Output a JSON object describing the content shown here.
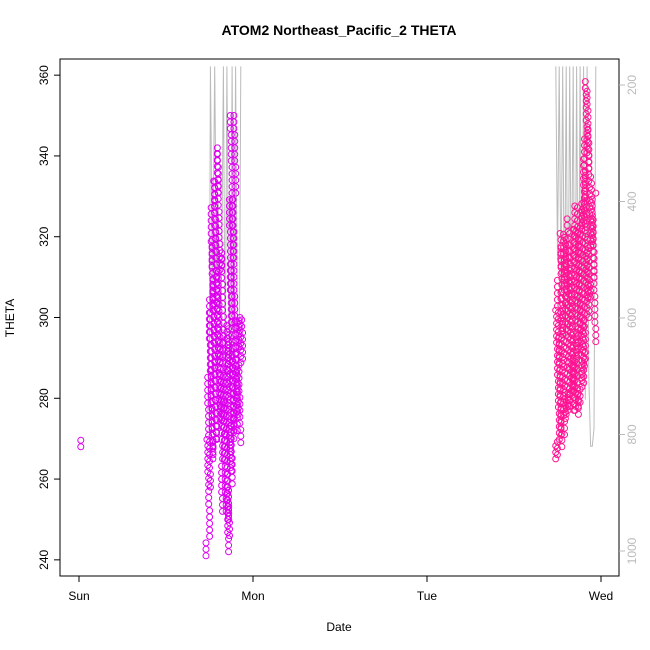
{
  "chart_data": {
    "type": "scatter",
    "title": "ATOM2 Northeast_Pacific_2 THETA",
    "xlabel": "Date",
    "ylabel": "THETA",
    "x_ticks": [
      "Sun",
      "Mon",
      "Tue",
      "Wed"
    ],
    "x_unit": "days since start of Sun",
    "xlim": [
      0,
      3.12
    ],
    "ylim": [
      236,
      364
    ],
    "y_ticks": [
      240,
      260,
      280,
      300,
      320,
      340,
      360
    ],
    "y2_ticks": [
      200,
      400,
      600,
      800,
      1000
    ],
    "y2lim": [
      1037,
      168
    ],
    "grid": false,
    "colors": {
      "series1": "#dd00ee",
      "series2": "#ff1493",
      "altitude": "#bbbbbb"
    },
    "series": [
      {
        "color": "#dd00ee",
        "clusters": [
          {
            "x": 0.0,
            "ymin": 268,
            "ymax": 270
          },
          {
            "x": 0.74,
            "ymin": 241,
            "ymax": 270
          },
          {
            "x": 0.75,
            "ymin": 258,
            "ymax": 305
          },
          {
            "x": 0.76,
            "ymin": 266,
            "ymax": 320
          },
          {
            "x": 0.77,
            "ymin": 268,
            "ymax": 335
          },
          {
            "x": 0.78,
            "ymin": 265,
            "ymax": 334
          },
          {
            "x": 0.79,
            "ymin": 270,
            "ymax": 342
          },
          {
            "x": 0.8,
            "ymin": 275,
            "ymax": 341
          },
          {
            "x": 0.81,
            "ymin": 276,
            "ymax": 317
          },
          {
            "x": 0.82,
            "ymin": 265,
            "ymax": 316
          },
          {
            "x": 0.83,
            "ymin": 252,
            "ymax": 295
          },
          {
            "x": 0.84,
            "ymin": 252,
            "ymax": 293
          },
          {
            "x": 0.85,
            "ymin": 250,
            "ymax": 296
          },
          {
            "x": 0.86,
            "ymin": 242,
            "ymax": 298
          },
          {
            "x": 0.87,
            "ymin": 246,
            "ymax": 330
          },
          {
            "x": 0.88,
            "ymin": 262,
            "ymax": 350
          },
          {
            "x": 0.89,
            "ymin": 270,
            "ymax": 350
          },
          {
            "x": 0.9,
            "ymin": 272,
            "ymax": 300
          },
          {
            "x": 0.91,
            "ymin": 272,
            "ymax": 300
          },
          {
            "x": 0.92,
            "ymin": 276,
            "ymax": 300
          },
          {
            "x": 0.93,
            "ymin": 269,
            "ymax": 300
          }
        ]
      },
      {
        "color": "#ff1493",
        "clusters": [
          {
            "x": 2.75,
            "ymin": 265,
            "ymax": 302
          },
          {
            "x": 2.76,
            "ymin": 266,
            "ymax": 318
          },
          {
            "x": 2.77,
            "ymin": 268,
            "ymax": 322
          },
          {
            "x": 2.78,
            "ymin": 271,
            "ymax": 322
          },
          {
            "x": 2.79,
            "ymin": 275,
            "ymax": 320
          },
          {
            "x": 2.8,
            "ymin": 278,
            "ymax": 325
          },
          {
            "x": 2.81,
            "ymin": 276,
            "ymax": 322
          },
          {
            "x": 2.82,
            "ymin": 277,
            "ymax": 315
          },
          {
            "x": 2.83,
            "ymin": 278,
            "ymax": 318
          },
          {
            "x": 2.84,
            "ymin": 277,
            "ymax": 322
          },
          {
            "x": 2.85,
            "ymin": 277,
            "ymax": 323
          },
          {
            "x": 2.86,
            "ymin": 278,
            "ymax": 328
          },
          {
            "x": 2.87,
            "ymin": 276,
            "ymax": 328
          },
          {
            "x": 2.88,
            "ymin": 278,
            "ymax": 326
          },
          {
            "x": 2.89,
            "ymin": 279,
            "ymax": 330
          },
          {
            "x": 2.9,
            "ymin": 285,
            "ymax": 345
          },
          {
            "x": 2.91,
            "ymin": 288,
            "ymax": 359
          },
          {
            "x": 2.92,
            "ymin": 300,
            "ymax": 357
          },
          {
            "x": 2.93,
            "ymin": 305,
            "ymax": 348
          },
          {
            "x": 2.94,
            "ymin": 306,
            "ymax": 336
          },
          {
            "x": 2.95,
            "ymin": 305,
            "ymax": 325
          },
          {
            "x": 2.96,
            "ymin": 294,
            "ymax": 332
          }
        ]
      }
    ],
    "altitude_line": {
      "color": "#bbbbbb",
      "points": [
        [
          0.74,
          760
        ],
        [
          0.75,
          640
        ],
        [
          0.755,
          168
        ],
        [
          0.76,
          300
        ],
        [
          0.765,
          560
        ],
        [
          0.77,
          470
        ],
        [
          0.78,
          168
        ],
        [
          0.79,
          520
        ],
        [
          0.8,
          400
        ],
        [
          0.81,
          600
        ],
        [
          0.82,
          520
        ],
        [
          0.83,
          168
        ],
        [
          0.84,
          700
        ],
        [
          0.85,
          168
        ],
        [
          0.86,
          560
        ],
        [
          0.87,
          720
        ],
        [
          0.88,
          168
        ],
        [
          0.89,
          620
        ],
        [
          0.9,
          168
        ],
        [
          0.91,
          600
        ],
        [
          0.92,
          740
        ],
        [
          0.93,
          168
        ],
        [
          2.74,
          168
        ],
        [
          2.75,
          500
        ],
        [
          2.76,
          168
        ],
        [
          2.77,
          560
        ],
        [
          2.78,
          168
        ],
        [
          2.79,
          640
        ],
        [
          2.8,
          168
        ],
        [
          2.81,
          700
        ],
        [
          2.82,
          168
        ],
        [
          2.83,
          600
        ],
        [
          2.84,
          168
        ],
        [
          2.85,
          740
        ],
        [
          2.86,
          168
        ],
        [
          2.87,
          700
        ],
        [
          2.88,
          168
        ],
        [
          2.89,
          620
        ],
        [
          2.9,
          168
        ],
        [
          2.91,
          740
        ],
        [
          2.92,
          168
        ],
        [
          2.93,
          700
        ],
        [
          2.94,
          820
        ],
        [
          2.95,
          820
        ],
        [
          2.96,
          790
        ],
        [
          2.97,
          168
        ]
      ]
    }
  }
}
